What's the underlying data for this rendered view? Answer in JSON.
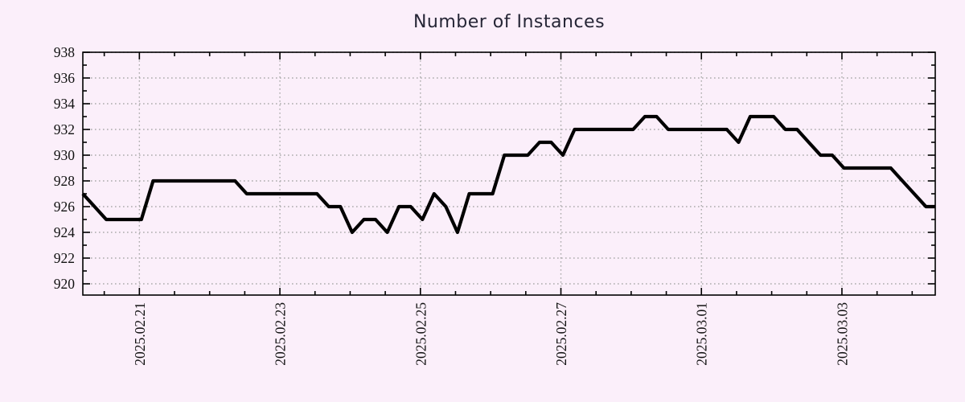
{
  "chart_data": {
    "type": "line",
    "title": "Number of Instances",
    "xlabel": "",
    "ylabel": "",
    "x_tick_labels": [
      "2025.02.21",
      "2025.02.23",
      "2025.02.25",
      "2025.02.27",
      "2025.03.01",
      "2025.03.03"
    ],
    "y_ticks": [
      920,
      922,
      924,
      926,
      928,
      930,
      932,
      934,
      936,
      938
    ],
    "ylim": [
      919.1,
      938
    ],
    "x_sample_interval_hours": 4,
    "x_major_tick_every_days": 2,
    "x_minor_tick_every_hours": 12,
    "grid": "dotted",
    "legend_position": "none",
    "series": [
      {
        "name": "Number of Instances",
        "values": [
          927,
          926,
          925,
          925,
          925,
          925,
          928,
          928,
          928,
          928,
          928,
          928,
          928,
          928,
          927,
          927,
          927,
          927,
          927,
          927,
          927,
          926,
          926,
          924,
          925,
          925,
          924,
          926,
          926,
          925,
          927,
          926,
          924,
          927,
          927,
          927,
          930,
          930,
          930,
          931,
          931,
          930,
          932,
          932,
          932,
          932,
          932,
          932,
          933,
          933,
          932,
          932,
          932,
          932,
          932,
          932,
          931,
          933,
          933,
          933,
          932,
          932,
          931,
          930,
          930,
          929,
          929,
          929,
          929,
          929,
          928,
          927,
          926
        ]
      }
    ],
    "colors": {
      "background": "#fbeffa",
      "line": "#000000",
      "grid": "#ababab",
      "axis": "#000000",
      "title_text": "#262636",
      "tick_text": "#111111"
    }
  }
}
